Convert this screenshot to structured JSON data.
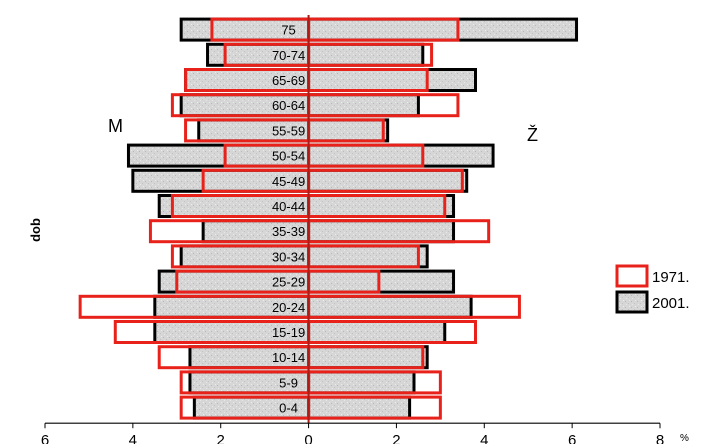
{
  "chart_data": {
    "type": "bar",
    "orientation": "horizontal-pyramid",
    "title": "",
    "xlabel": "",
    "x_unit": "%",
    "ylabel": "dob",
    "side_labels": {
      "left": "M",
      "right": "Ž"
    },
    "categories": [
      "75",
      "70-74",
      "65-69",
      "60-64",
      "55-59",
      "50-54",
      "45-49",
      "40-44",
      "35-39",
      "30-34",
      "25-29",
      "20-24",
      "15-19",
      "10-14",
      "5-9",
      "0-4"
    ],
    "xlim": [
      -6,
      8
    ],
    "x_ticks": [
      -6,
      -4,
      -2,
      0,
      2,
      4,
      6,
      8
    ],
    "x_tick_labels": [
      "6",
      "4",
      "2",
      "0",
      "2",
      "4",
      "6",
      "8"
    ],
    "series": [
      {
        "name": "1971.",
        "color": "#e8221b",
        "fill": "none",
        "male": [
          2.2,
          1.9,
          2.8,
          3.1,
          2.8,
          1.9,
          2.4,
          3.1,
          3.6,
          3.1,
          3.0,
          5.2,
          4.4,
          3.4,
          2.9,
          2.9
        ],
        "female": [
          3.4,
          2.8,
          2.7,
          3.4,
          1.7,
          2.6,
          3.5,
          3.1,
          4.1,
          2.5,
          1.6,
          4.8,
          3.8,
          2.6,
          3.0,
          3.0
        ]
      },
      {
        "name": "2001.",
        "color": "#000000",
        "fill": "#d4d4d4",
        "male": [
          2.9,
          2.3,
          2.8,
          2.9,
          2.5,
          4.1,
          4.0,
          3.4,
          2.4,
          2.9,
          3.4,
          3.5,
          3.5,
          2.7,
          2.7,
          2.6
        ],
        "female": [
          6.1,
          2.6,
          3.8,
          2.5,
          1.8,
          4.2,
          3.6,
          3.3,
          3.3,
          2.7,
          3.3,
          3.7,
          3.1,
          2.7,
          2.4,
          2.3
        ]
      }
    ],
    "legend": {
      "position": "right",
      "entries": [
        "1971.",
        "2001."
      ]
    },
    "grid": false
  }
}
